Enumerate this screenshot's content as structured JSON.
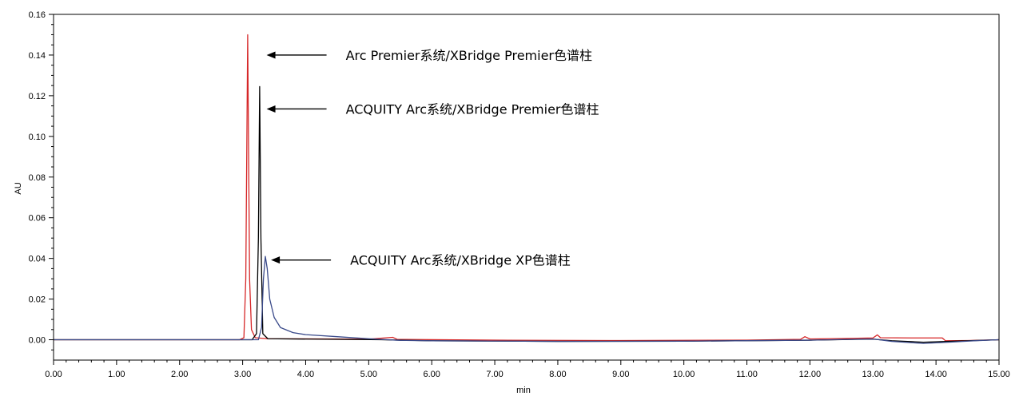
{
  "chart_data": {
    "type": "line",
    "xlabel": "min",
    "ylabel": "AU",
    "xlim": [
      0,
      15
    ],
    "ylim": [
      -0.01,
      0.16
    ],
    "x_ticks": [
      0,
      1,
      2,
      3,
      4,
      5,
      6,
      7,
      8,
      9,
      10,
      11,
      12,
      13,
      14,
      15
    ],
    "x_tick_labels": [
      "0.00",
      "1.00",
      "2.00",
      "3.00",
      "4.00",
      "5.00",
      "6.00",
      "7.00",
      "8.00",
      "9.00",
      "10.00",
      "11.00",
      "12.00",
      "13.00",
      "14.00",
      "15.00"
    ],
    "y_ticks": [
      0,
      0.02,
      0.04,
      0.06,
      0.08,
      0.1,
      0.12,
      0.14,
      0.16
    ],
    "y_tick_labels": [
      "0.00",
      "0.02",
      "0.04",
      "0.06",
      "0.08",
      "0.10",
      "0.12",
      "0.14",
      "0.16"
    ],
    "grid": false,
    "legend": "none",
    "series": [
      {
        "color": "#d62728",
        "points": [
          [
            0,
            0
          ],
          [
            2.95,
            0
          ],
          [
            3.02,
            0.001
          ],
          [
            3.05,
            0.03
          ],
          [
            3.08,
            0.15
          ],
          [
            3.11,
            0.03
          ],
          [
            3.14,
            0.005
          ],
          [
            3.2,
            0.001
          ],
          [
            3.4,
            0.0005
          ],
          [
            5,
            0.0003
          ],
          [
            5.38,
            0.0012
          ],
          [
            5.45,
            0.0002
          ],
          [
            7,
            -0.0002
          ],
          [
            9,
            -0.0004
          ],
          [
            11,
            -0.0002
          ],
          [
            11.85,
            0.0002
          ],
          [
            11.92,
            0.0015
          ],
          [
            12.0,
            0.0004
          ],
          [
            12.5,
            0.0006
          ],
          [
            13.0,
            0.0009
          ],
          [
            13.07,
            0.0024
          ],
          [
            13.12,
            0.001
          ],
          [
            13.6,
            0.0009
          ],
          [
            14.1,
            0.0009
          ],
          [
            14.15,
            -0.0005
          ],
          [
            14.5,
            -0.0004
          ],
          [
            15,
            0
          ]
        ]
      },
      {
        "color": "#000000",
        "points": [
          [
            0,
            0
          ],
          [
            3.15,
            0
          ],
          [
            3.22,
            0.003
          ],
          [
            3.25,
            0.05
          ],
          [
            3.27,
            0.1245
          ],
          [
            3.29,
            0.05
          ],
          [
            3.32,
            0.003
          ],
          [
            3.4,
            0.0005
          ],
          [
            4.5,
            0.0002
          ],
          [
            5.2,
            0
          ],
          [
            6,
            -0.0005
          ],
          [
            8,
            -0.0008
          ],
          [
            10,
            -0.0007
          ],
          [
            12,
            -0.0002
          ],
          [
            13,
            0.0003
          ],
          [
            13.3,
            -0.0005
          ],
          [
            13.8,
            -0.0012
          ],
          [
            14.2,
            -0.0008
          ],
          [
            14.6,
            -0.0004
          ],
          [
            15,
            0
          ]
        ]
      },
      {
        "color": "#3a4a8a",
        "points": [
          [
            0,
            0
          ],
          [
            3.25,
            0
          ],
          [
            3.3,
            0.006
          ],
          [
            3.33,
            0.03
          ],
          [
            3.36,
            0.041
          ],
          [
            3.39,
            0.035
          ],
          [
            3.43,
            0.02
          ],
          [
            3.5,
            0.011
          ],
          [
            3.6,
            0.006
          ],
          [
            3.8,
            0.0035
          ],
          [
            4.0,
            0.0025
          ],
          [
            4.5,
            0.0015
          ],
          [
            5,
            0.0005
          ],
          [
            5.5,
            -0.0003
          ],
          [
            6,
            -0.0005
          ],
          [
            8,
            -0.0008
          ],
          [
            10,
            -0.0007
          ],
          [
            12,
            -0.0002
          ],
          [
            13,
            0.0004
          ],
          [
            13.3,
            -0.0008
          ],
          [
            13.8,
            -0.0018
          ],
          [
            14.2,
            -0.0012
          ],
          [
            14.6,
            -0.0005
          ],
          [
            15,
            0
          ]
        ]
      }
    ],
    "annotations": [
      {
        "text": "Arc Premier系统/XBridge Premier色谱柱",
        "target_x": 3.38,
        "target_y": 0.14
      },
      {
        "text": "ACQUITY Arc系统/XBridge Premier色谱柱",
        "target_x": 3.38,
        "target_y": 0.1135
      },
      {
        "text": "ACQUITY Arc系统/XBridge XP色谱柱",
        "target_x": 3.45,
        "target_y": 0.0392
      }
    ]
  }
}
